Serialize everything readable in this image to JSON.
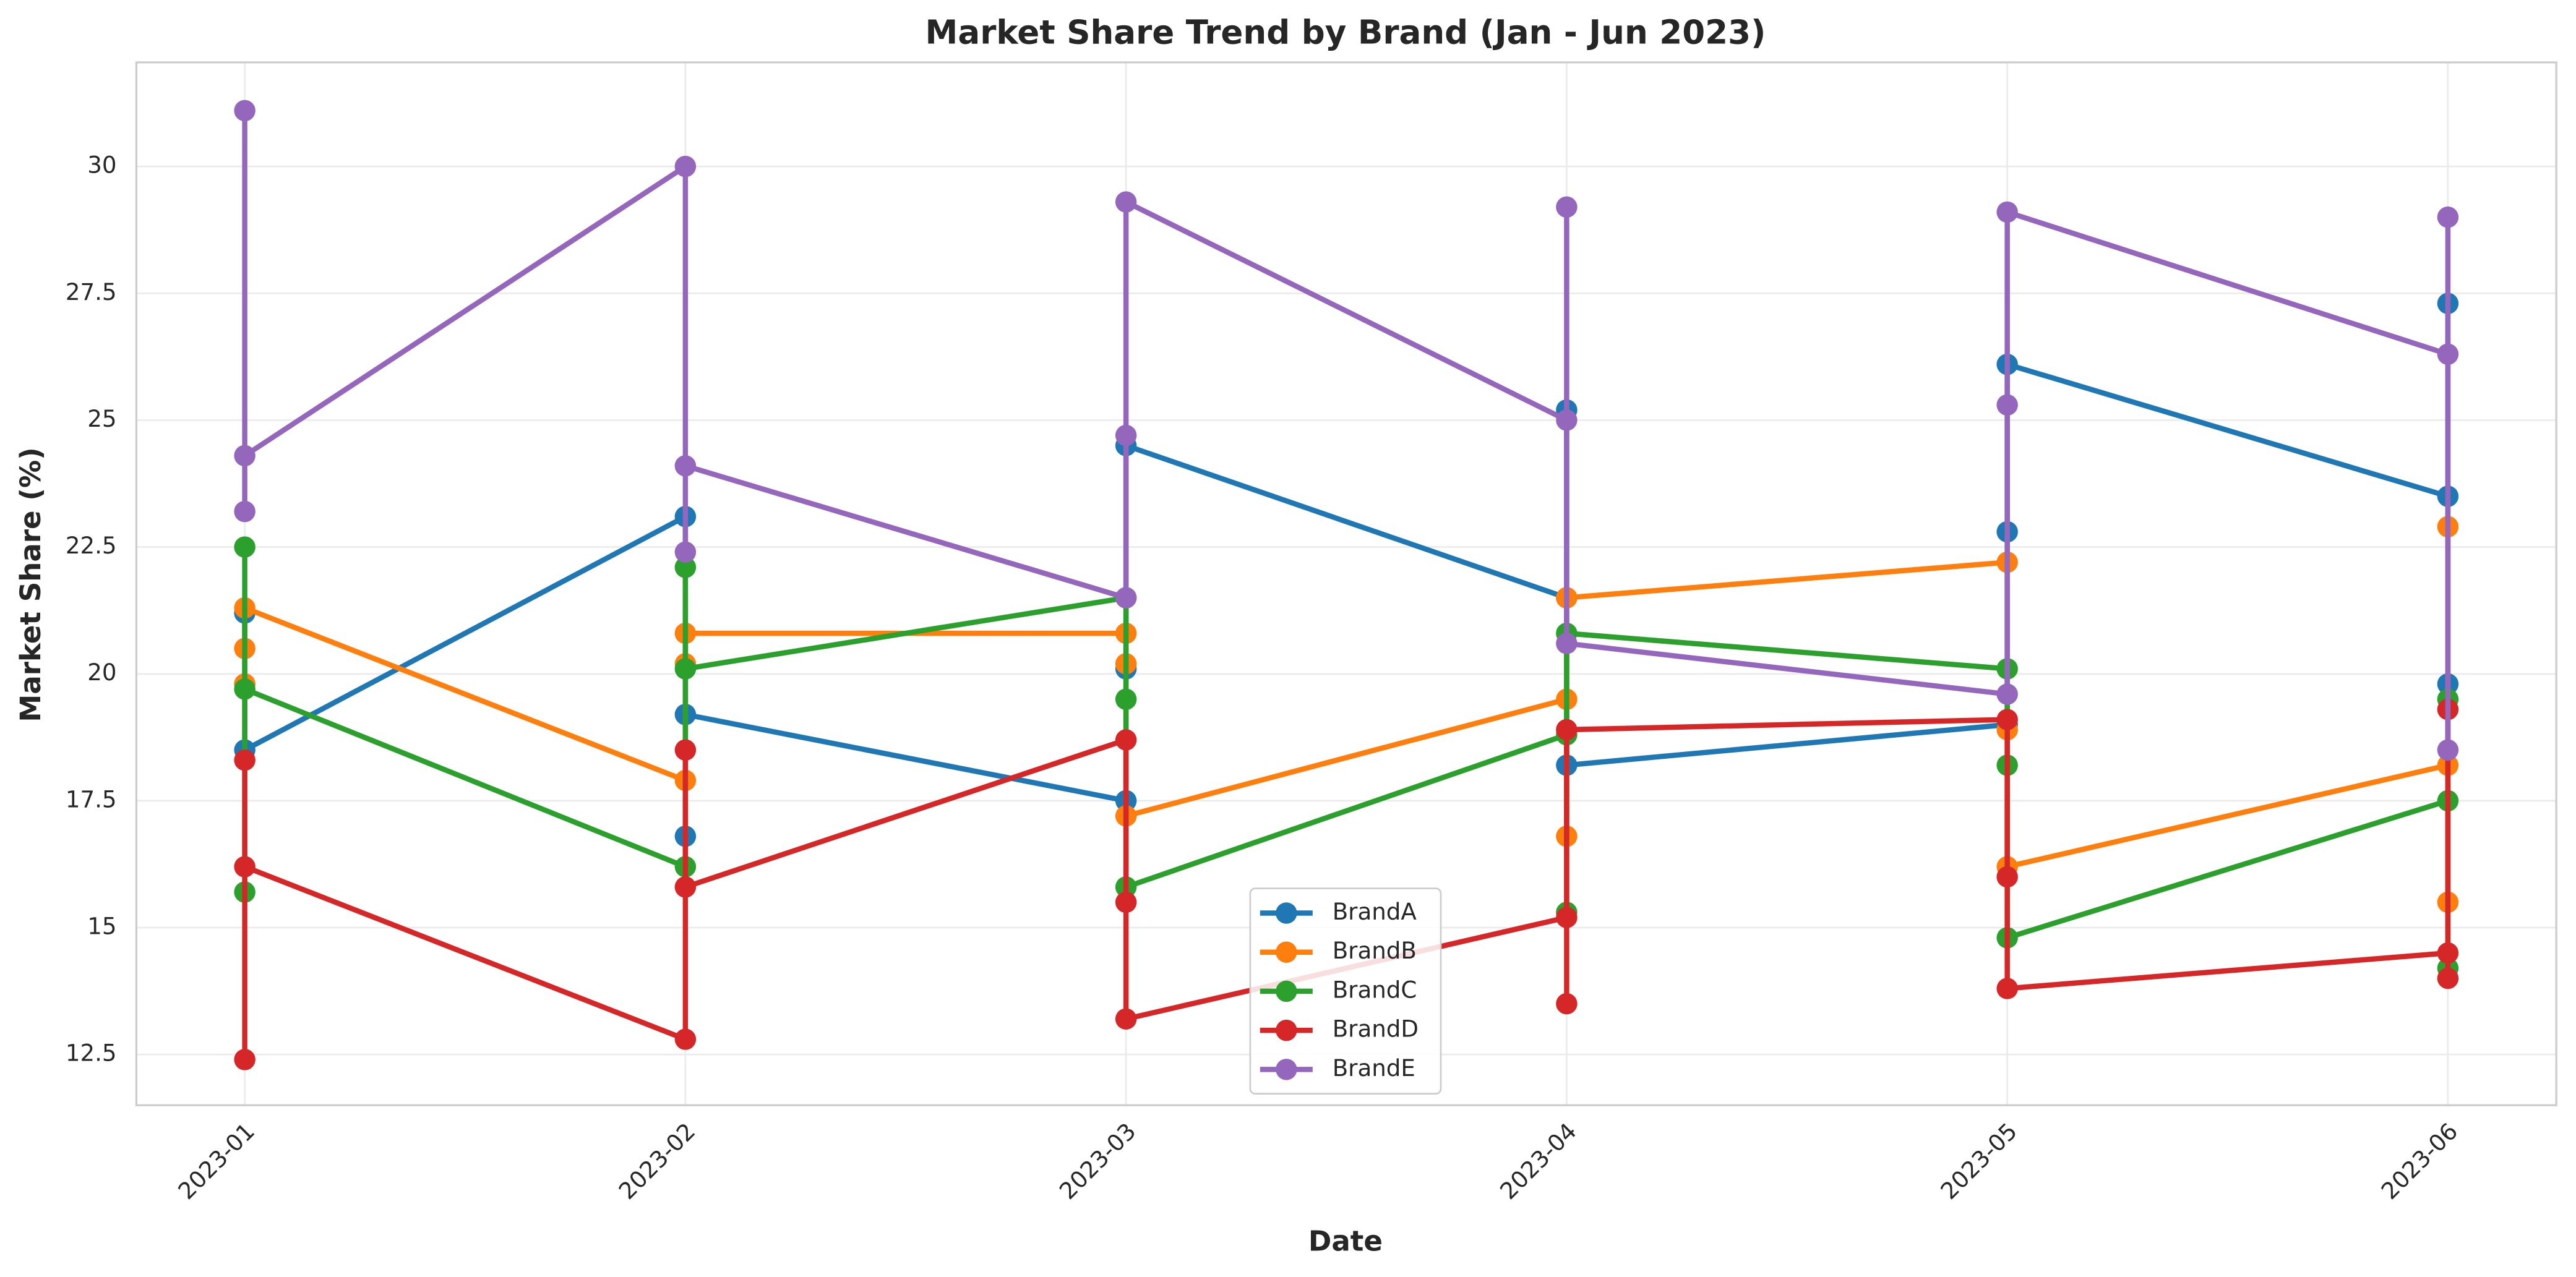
{
  "chart_data": {
    "type": "line",
    "title": "Market Share Trend by Brand (Jan - Jun 2023)",
    "x_label": "Date",
    "y_label": "Market Share (%)",
    "x": [
      "2023-01",
      "2023-01",
      "2023-01",
      "2023-02",
      "2023-02",
      "2023-02",
      "2023-03",
      "2023-03",
      "2023-03",
      "2023-04",
      "2023-04",
      "2023-04",
      "2023-05",
      "2023-05",
      "2023-05",
      "2023-06",
      "2023-06",
      "2023-06"
    ],
    "xticks": [
      "2023-01",
      "2023-02",
      "2023-03",
      "2023-04",
      "2023-05",
      "2023-06"
    ],
    "ylim": [
      11.5,
      32.05
    ],
    "yticks": [
      12.5,
      15.0,
      17.5,
      20.0,
      22.5,
      25.0,
      27.5,
      30.0
    ],
    "grid": true,
    "legend": "lower center",
    "series": [
      {
        "name": "BrandA",
        "color": "#1f77b4",
        "values": [
          19.8,
          21.2,
          18.5,
          23.1,
          16.8,
          19.2,
          17.5,
          20.1,
          24.5,
          21.5,
          25.2,
          18.2,
          19.0,
          22.8,
          26.1,
          23.5,
          27.3,
          19.8
        ]
      },
      {
        "name": "BrandB",
        "color": "#ff7f0e",
        "values": [
          19.8,
          20.5,
          21.3,
          17.9,
          20.2,
          20.8,
          20.8,
          20.2,
          17.2,
          19.5,
          16.8,
          21.5,
          22.2,
          18.9,
          16.2,
          18.2,
          15.5,
          22.9
        ]
      },
      {
        "name": "BrandC",
        "color": "#2ca02c",
        "values": [
          22.5,
          15.7,
          19.7,
          16.2,
          22.1,
          20.1,
          21.5,
          19.5,
          15.8,
          18.8,
          15.3,
          20.8,
          20.1,
          18.2,
          14.8,
          17.5,
          14.2,
          19.5
        ]
      },
      {
        "name": "BrandD",
        "color": "#d62728",
        "values": [
          18.3,
          12.4,
          16.2,
          12.8,
          18.5,
          15.8,
          18.7,
          15.5,
          13.2,
          15.2,
          13.5,
          18.9,
          19.1,
          16.0,
          13.8,
          14.5,
          14.0,
          19.3
        ]
      },
      {
        "name": "BrandE",
        "color": "#9467bd",
        "values": [
          31.1,
          23.2,
          24.3,
          30.0,
          22.4,
          24.1,
          21.5,
          24.7,
          29.3,
          25.0,
          29.2,
          20.6,
          19.6,
          25.3,
          29.1,
          26.3,
          29.0,
          18.5
        ]
      }
    ]
  }
}
